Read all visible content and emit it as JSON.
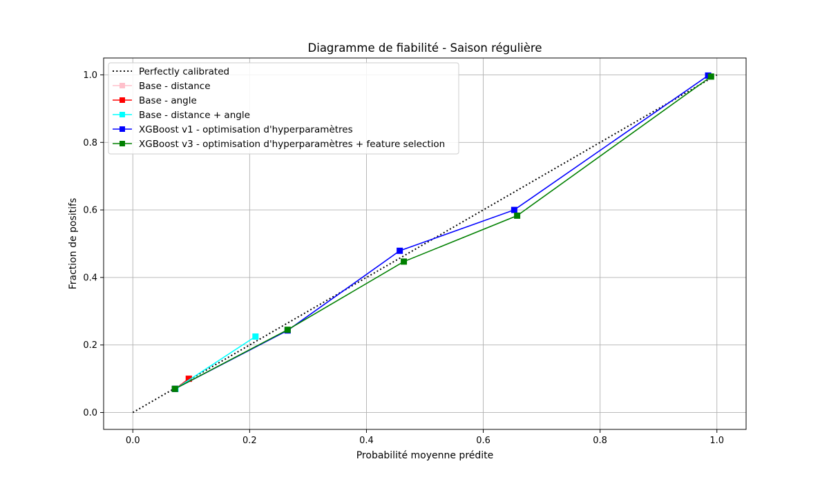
{
  "chart_data": {
    "type": "line",
    "title": "Diagramme de fiabilité - Saison régulière",
    "xlabel": "Probabilité moyenne prédite",
    "ylabel": "Fraction de positifs",
    "xlim": [
      -0.05,
      1.05
    ],
    "ylim": [
      -0.05,
      1.05
    ],
    "xticks": [
      0.0,
      0.2,
      0.4,
      0.6,
      0.8,
      1.0
    ],
    "yticks": [
      0.0,
      0.2,
      0.4,
      0.6,
      0.8,
      1.0
    ],
    "xtick_labels": [
      "0.0",
      "0.2",
      "0.4",
      "0.6",
      "0.8",
      "1.0"
    ],
    "ytick_labels": [
      "0.0",
      "0.2",
      "0.4",
      "0.6",
      "0.8",
      "1.0"
    ],
    "grid": true,
    "legend_position": "top-left",
    "series": [
      {
        "name": "Perfectly calibrated",
        "color": "#000000",
        "style": "dotted",
        "marker": "none",
        "x": [
          0.0,
          1.0
        ],
        "y": [
          0.0,
          1.0
        ]
      },
      {
        "name": "Base - distance",
        "color": "#ffc0cb",
        "style": "solid",
        "marker": "square",
        "x": [
          0.073,
          0.095
        ],
        "y": [
          0.07,
          0.1
        ]
      },
      {
        "name": "Base - angle",
        "color": "#ff0000",
        "style": "solid",
        "marker": "square",
        "x": [
          0.073,
          0.096
        ],
        "y": [
          0.07,
          0.1
        ]
      },
      {
        "name": "Base - distance + angle",
        "color": "#00ffff",
        "style": "solid",
        "marker": "square",
        "x": [
          0.073,
          0.21
        ],
        "y": [
          0.07,
          0.225
        ]
      },
      {
        "name": "XGBoost v1 - optimisation d'hyperparamètres",
        "color": "#0000ff",
        "style": "solid",
        "marker": "square",
        "x": [
          0.072,
          0.265,
          0.457,
          0.653,
          0.985
        ],
        "y": [
          0.07,
          0.243,
          0.479,
          0.6,
          0.998
        ]
      },
      {
        "name": "XGBoost v3 - optimisation d'hyperparamètres + feature selection",
        "color": "#008000",
        "style": "solid",
        "marker": "square",
        "x": [
          0.072,
          0.265,
          0.464,
          0.658,
          0.99
        ],
        "y": [
          0.07,
          0.245,
          0.447,
          0.583,
          0.995
        ]
      }
    ]
  }
}
